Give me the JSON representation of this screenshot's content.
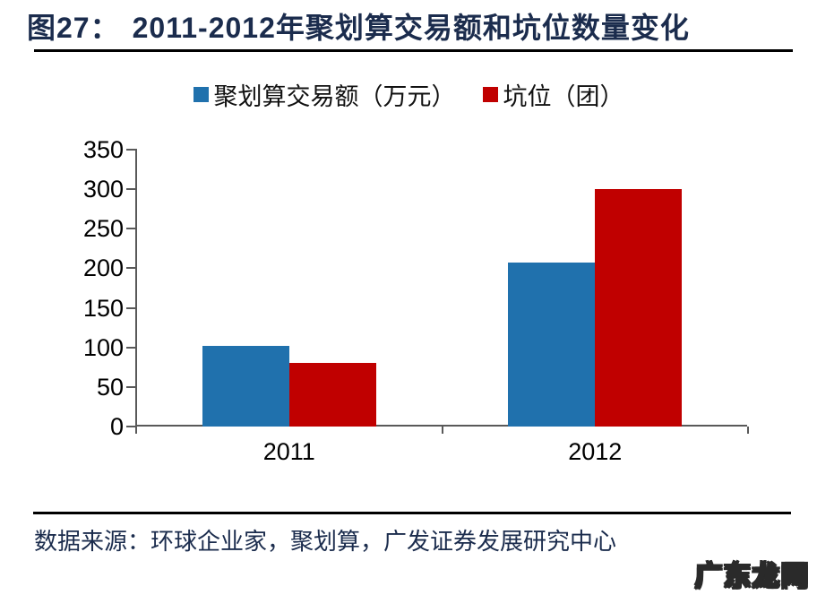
{
  "header": {
    "figure_label": "图27：",
    "title": "2011-2012年聚划算交易额和坑位数量变化"
  },
  "chart_data": {
    "type": "bar",
    "categories": [
      "2011",
      "2012"
    ],
    "series": [
      {
        "name": "聚划算交易额（万元）",
        "color": "#2071ad",
        "values": [
          102,
          207
        ]
      },
      {
        "name": "坑位（团）",
        "color": "#c00000",
        "values": [
          80,
          300
        ]
      }
    ],
    "ylim": [
      0,
      350
    ],
    "yticks": [
      0,
      50,
      100,
      150,
      200,
      250,
      300,
      350
    ],
    "legend_position": "top",
    "grid": false,
    "axis_color": "#595959"
  },
  "footer": {
    "source": "数据来源：环球企业家，聚划算，广发证券发展研究中心"
  },
  "watermark": {
    "text": "广东龙网"
  }
}
